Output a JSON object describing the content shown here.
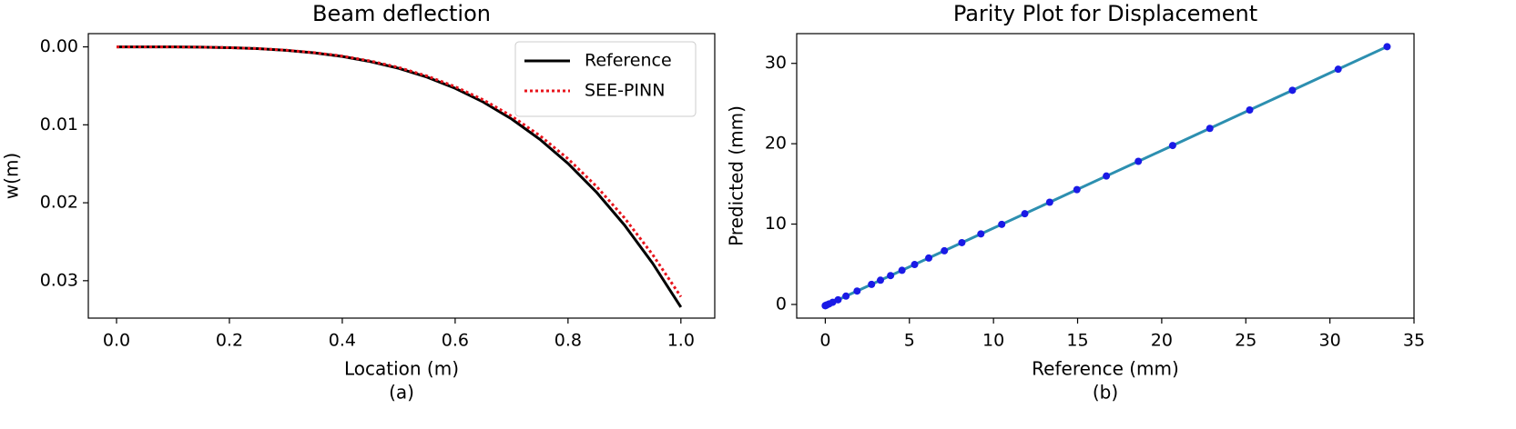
{
  "chart_data": [
    {
      "type": "line",
      "title": "Beam deflection",
      "xlabel": "Location (m)",
      "ylabel": "w(m)",
      "caption": "(a)",
      "x": [
        0,
        0.05,
        0.1,
        0.15,
        0.2,
        0.25,
        0.3,
        0.35,
        0.4,
        0.45,
        0.5,
        0.55,
        0.6,
        0.65,
        0.7,
        0.75,
        0.8,
        0.85,
        0.9,
        0.95,
        1.0
      ],
      "series": [
        {
          "name": "Reference",
          "color": "#000000",
          "linestyle": "solid",
          "values": [
            0,
            0,
            1e-05,
            4e-05,
            0.0001,
            0.00023,
            0.00044,
            0.00076,
            0.00123,
            0.00189,
            0.00275,
            0.00388,
            0.00531,
            0.00708,
            0.00925,
            0.01186,
            0.01496,
            0.01861,
            0.02286,
            0.02777,
            0.0334
          ]
        },
        {
          "name": "SEE-PINN",
          "color": "#e8141c",
          "linestyle": "dotted",
          "values": [
            0,
            0,
            1e-05,
            3e-05,
            0.0001,
            0.00022,
            0.00042,
            0.00073,
            0.00118,
            0.00181,
            0.00264,
            0.00373,
            0.0051,
            0.0068,
            0.00888,
            0.01138,
            0.01436,
            0.01787,
            0.02194,
            0.02666,
            0.03206
          ]
        }
      ],
      "xlim": [
        -0.05,
        1.06
      ],
      "ylim": [
        0.0348,
        -0.0017
      ],
      "xticks": [
        {
          "value": 0,
          "label": "0.0"
        },
        {
          "value": 0.2,
          "label": "0.2"
        },
        {
          "value": 0.4,
          "label": "0.4"
        },
        {
          "value": 0.6,
          "label": "0.6"
        },
        {
          "value": 0.8,
          "label": "0.8"
        },
        {
          "value": 1.0,
          "label": "1.0"
        }
      ],
      "yticks": [
        {
          "value": 0,
          "label": "0.00"
        },
        {
          "value": 0.01,
          "label": "0.01"
        },
        {
          "value": 0.02,
          "label": "0.02"
        },
        {
          "value": 0.03,
          "label": "0.03"
        }
      ],
      "legend": "upper right"
    },
    {
      "type": "scatter",
      "title": "Parity Plot for Displacement",
      "xlabel": "Reference (mm)",
      "ylabel": "Predicted (mm)",
      "caption": "(b)",
      "x": [
        0,
        0,
        0.01,
        0.04,
        0.1,
        0.23,
        0.44,
        0.76,
        1.23,
        1.89,
        2.75,
        3.28,
        3.88,
        4.56,
        5.31,
        6.15,
        7.08,
        8.12,
        9.25,
        10.49,
        11.86,
        13.34,
        14.96,
        16.71,
        18.61,
        20.65,
        22.86,
        25.23,
        27.77,
        30.49,
        33.4
      ],
      "series": [
        {
          "color": "#1a1ae6",
          "line_color": "#2c8fb0",
          "values": [
            -0.15,
            -0.15,
            -0.14,
            -0.11,
            -0.05,
            0.07,
            0.27,
            0.58,
            1.04,
            1.67,
            2.5,
            3.02,
            3.59,
            4.25,
            4.97,
            5.78,
            6.68,
            7.69,
            8.78,
            9.97,
            11.29,
            12.72,
            14.29,
            15.98,
            17.81,
            19.78,
            21.91,
            24.2,
            26.65,
            29.27,
            32.08
          ]
        }
      ],
      "xlim": [
        -1.7,
        35
      ],
      "ylim": [
        -1.7,
        33.7
      ],
      "xticks": [
        0,
        5,
        10,
        15,
        20,
        25,
        30,
        35
      ],
      "yticks": [
        0,
        10,
        20,
        30
      ]
    }
  ]
}
